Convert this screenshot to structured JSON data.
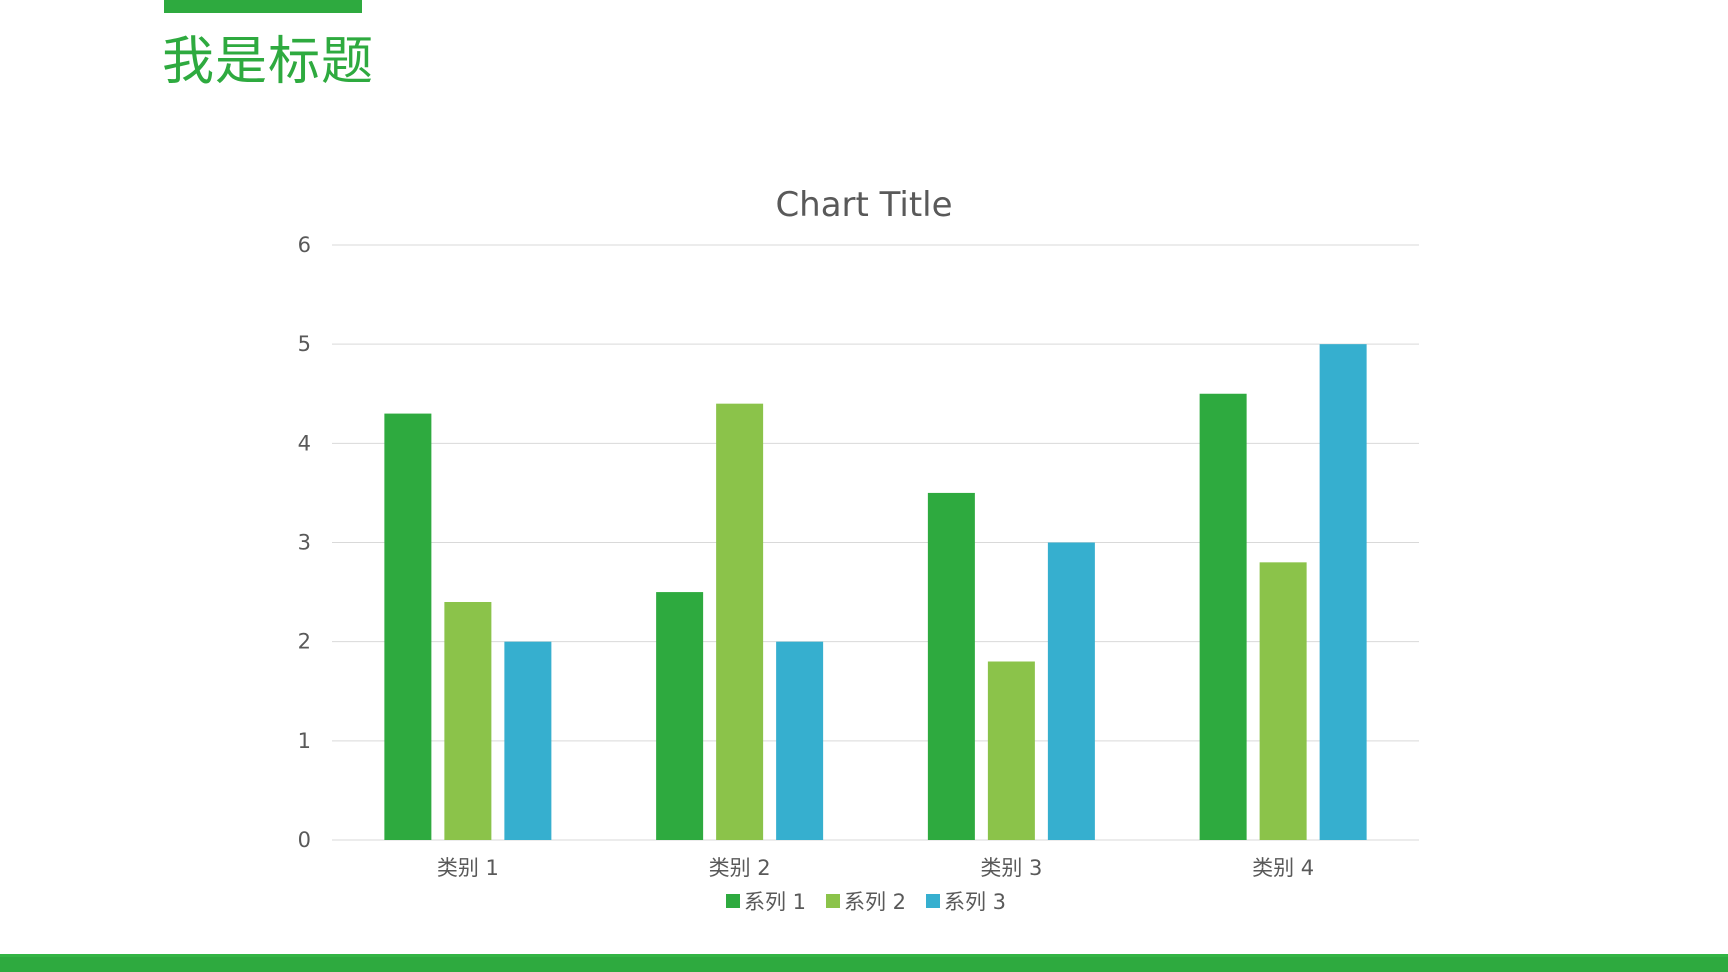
{
  "slide": {
    "title": "我是标题",
    "accent_color": "#2eaa3f"
  },
  "chart_data": {
    "type": "bar",
    "title": "Chart Title",
    "categories": [
      "类别 1",
      "类别 2",
      "类别 3",
      "类别 4"
    ],
    "series": [
      {
        "name": "系列 1",
        "color": "#2eaa3f",
        "values": [
          4.3,
          2.5,
          3.5,
          4.5
        ]
      },
      {
        "name": "系列 2",
        "color": "#8bc34a",
        "values": [
          2.4,
          4.4,
          1.8,
          2.8
        ]
      },
      {
        "name": "系列 3",
        "color": "#36afcf",
        "values": [
          2,
          2,
          3,
          5
        ]
      }
    ],
    "ylim": [
      0,
      6
    ],
    "yticks": [
      "0",
      "1",
      "2",
      "3",
      "4",
      "5",
      "6"
    ],
    "grid": true,
    "legend_position": "bottom"
  }
}
